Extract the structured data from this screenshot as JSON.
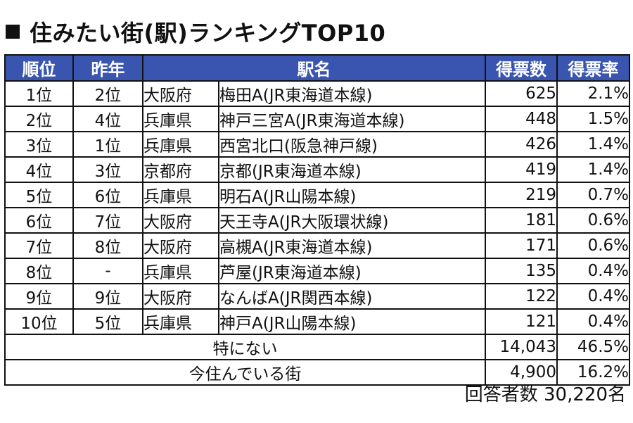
{
  "title": "住みたい街(駅)ランキングTOP10",
  "headers": {
    "rank": "順位",
    "prev": "昨年",
    "station": "駅名",
    "votes": "得票数",
    "rate": "得票率"
  },
  "rows": [
    {
      "rank": "1位",
      "prev": "2位",
      "pref": "大阪府",
      "station": "梅田A(JR東海道本線)",
      "votes": "625",
      "rate": "2.1%"
    },
    {
      "rank": "2位",
      "prev": "4位",
      "pref": "兵庫県",
      "station": "神戸三宮A(JR東海道本線)",
      "votes": "448",
      "rate": "1.5%"
    },
    {
      "rank": "3位",
      "prev": "1位",
      "pref": "兵庫県",
      "station": "西宮北口(阪急神戸線)",
      "votes": "426",
      "rate": "1.4%"
    },
    {
      "rank": "4位",
      "prev": "3位",
      "pref": "京都府",
      "station": "京都(JR東海道本線)",
      "votes": "419",
      "rate": "1.4%"
    },
    {
      "rank": "5位",
      "prev": "6位",
      "pref": "兵庫県",
      "station": "明石A(JR山陽本線)",
      "votes": "219",
      "rate": "0.7%"
    },
    {
      "rank": "6位",
      "prev": "7位",
      "pref": "大阪府",
      "station": "天王寺A(JR大阪環状線)",
      "votes": "181",
      "rate": "0.6%"
    },
    {
      "rank": "7位",
      "prev": "8位",
      "pref": "大阪府",
      "station": "高槻A(JR東海道本線)",
      "votes": "171",
      "rate": "0.6%"
    },
    {
      "rank": "8位",
      "prev": "-",
      "pref": "兵庫県",
      "station": "芦屋(JR東海道本線)",
      "votes": "135",
      "rate": "0.4%"
    },
    {
      "rank": "9位",
      "prev": "9位",
      "pref": "大阪府",
      "station": "なんばA(JR関西本線)",
      "votes": "122",
      "rate": "0.4%"
    },
    {
      "rank": "10位",
      "prev": "5位",
      "pref": "兵庫県",
      "station": "神戸A(JR山陽本線)",
      "votes": "121",
      "rate": "0.4%"
    }
  ],
  "extra": [
    {
      "label": "特にない",
      "votes": "14,043",
      "rate": "46.5%"
    },
    {
      "label": "今住んでいる街",
      "votes": "4,900",
      "rate": "16.2%"
    }
  ],
  "footer": "回答者数 30,220名",
  "colors": {
    "header_bg": "#3a55b0",
    "header_text": "#ffffff"
  },
  "icons": {
    "title_marker": "black-square-icon"
  }
}
